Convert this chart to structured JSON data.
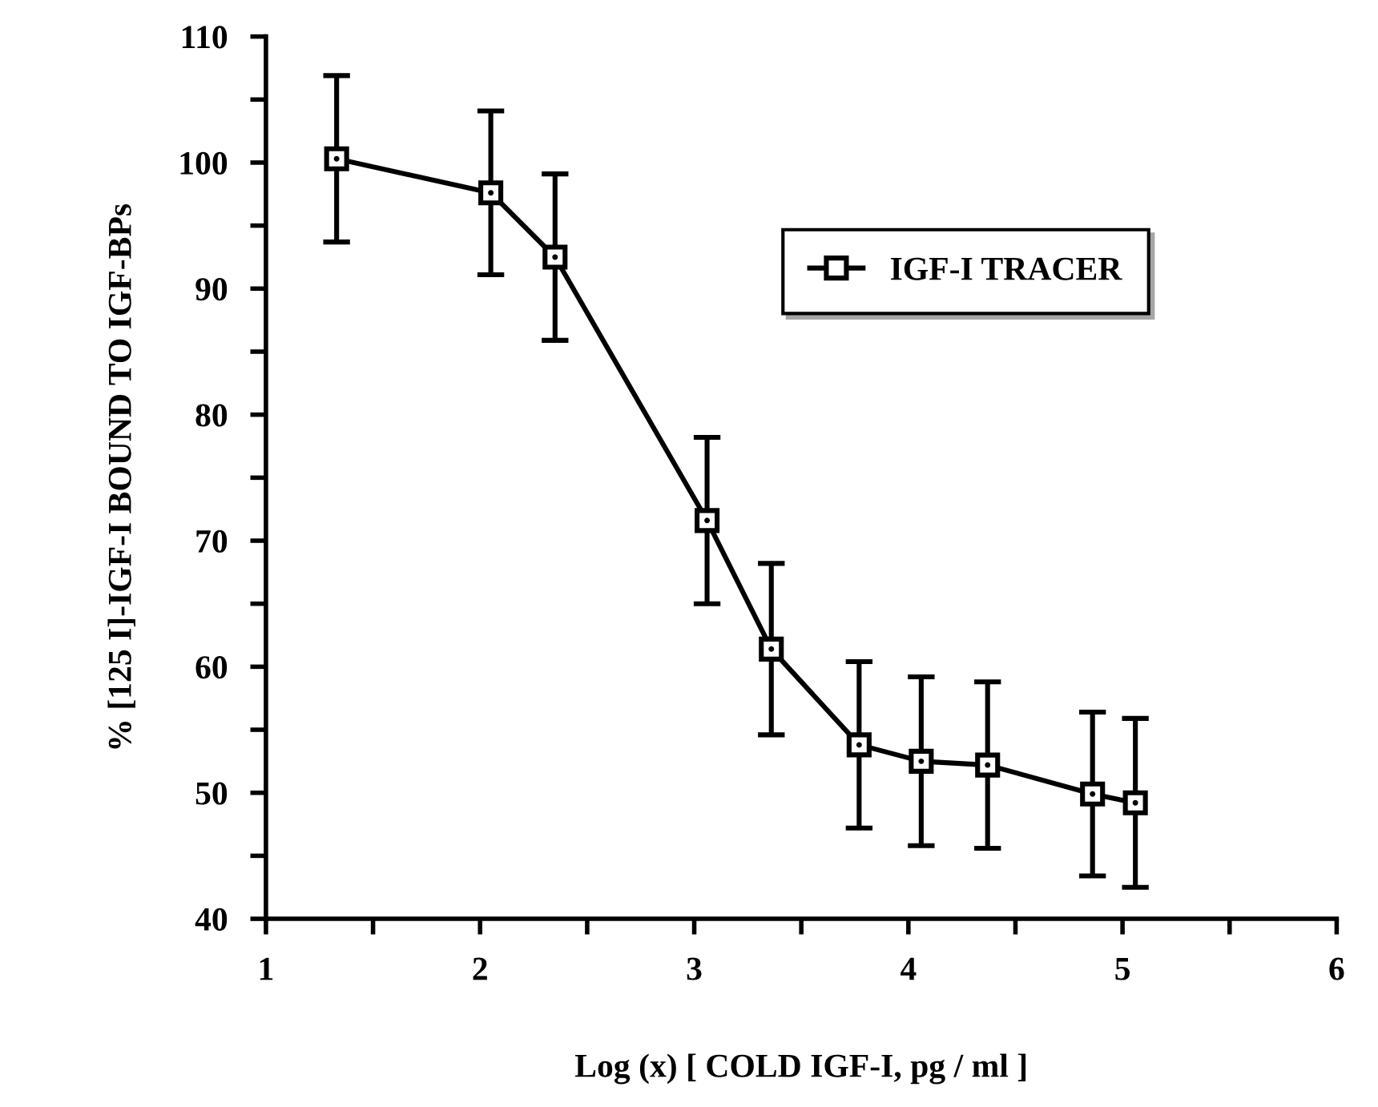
{
  "chart_data": {
    "type": "line",
    "xlabel": "Log (x) [ COLD IGF-I, pg / ml ]",
    "ylabel": "% [125 I]-IGF-I BOUND TO IGF-BPs",
    "x": [
      1.33,
      2.05,
      2.35,
      3.06,
      3.36,
      3.77,
      4.06,
      4.37,
      4.86,
      5.06
    ],
    "series": [
      {
        "name": "IGF-I TRACER",
        "color": "#000000",
        "values": [
          100.3,
          97.6,
          92.5,
          71.6,
          61.4,
          53.8,
          52.5,
          52.2,
          49.9,
          49.2
        ],
        "errors": [
          6.6,
          6.5,
          6.6,
          6.6,
          6.8,
          6.6,
          6.7,
          6.6,
          6.5,
          6.7
        ]
      }
    ],
    "xlim": [
      1,
      6
    ],
    "xticks": [
      1,
      {
        "value": 1.5,
        "label": null
      },
      2,
      {
        "value": 2.5,
        "label": null
      },
      3,
      {
        "value": 3.5,
        "label": null
      },
      4,
      {
        "value": 4.5,
        "label": null
      },
      5,
      {
        "value": 5.5,
        "label": null
      },
      6
    ],
    "ylim": [
      40,
      110
    ],
    "yticks": [
      40,
      {
        "value": 45,
        "label": null
      },
      50,
      {
        "value": 55,
        "label": null
      },
      60,
      {
        "value": 65,
        "label": null
      },
      70,
      {
        "value": 75,
        "label": null
      },
      80,
      {
        "value": 85,
        "label": null
      },
      90,
      {
        "value": 95,
        "label": null
      },
      100,
      {
        "value": 105,
        "label": null
      },
      110
    ],
    "grid": false,
    "legend": "top right",
    "marker": "square",
    "line_style": "solid"
  }
}
